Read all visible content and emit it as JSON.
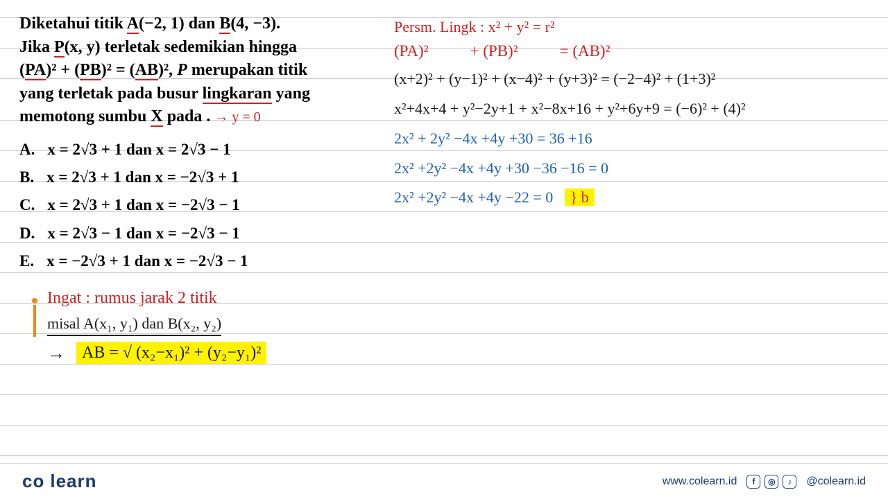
{
  "problem": {
    "l1_a": "Diketahui titik ",
    "l1_b": "A",
    "l1_c": "(−2, 1) dan ",
    "l1_d": "B",
    "l1_e": "(4, −3).",
    "l2_a": "Jika ",
    "l2_b": "P",
    "l2_c": "(x, y) terletak sedemikian hingga",
    "l3_a": "(",
    "l3_b": "PA",
    "l3_c": ")² + (",
    "l3_d": "PB",
    "l3_e": ")² = (",
    "l3_f": "AB",
    "l3_g": ")², ",
    "l3_h": "P",
    "l3_i": " merupakan titik",
    "l4": "yang terletak pada busur ",
    "l4_u": "lingkaran",
    "l4_b": " yang",
    "l5_a": "memotong sumbu ",
    "l5_b": "X",
    "l5_c": " pada . ",
    "annot": "→ y = 0"
  },
  "options": {
    "A": {
      "k": "A.",
      "t": "x = 2√3 + 1 dan x = 2√3 − 1"
    },
    "B": {
      "k": "B.",
      "t": "x = 2√3 + 1 dan x = −2√3 + 1"
    },
    "C": {
      "k": "C.",
      "t": "x = 2√3 + 1 dan x = −2√3 − 1"
    },
    "D": {
      "k": "D.",
      "t": "x = 2√3 − 1 dan x = −2√3 − 1"
    },
    "E": {
      "k": "E.",
      "t": "x = −2√3 + 1 dan x = −2√3 − 1"
    }
  },
  "work": {
    "title": "Persm. Lingk :  x² + y² = r²",
    "eq1_a": "(PA)²",
    "eq1_b": "+ (PB)²",
    "eq1_c": "= (AB)²",
    "w1": "(x+2)² + (y−1)² + (x−4)² + (y+3)² = (−2−4)² + (1+3)²",
    "w2": "x²+4x+4 + y²−2y+1 + x²−8x+16 + y²+6y+9 = (−6)² + (4)²",
    "w3": "2x² + 2y² −4x +4y  +30   = 36  +16",
    "w4": "2x²  +2y² −4x +4y +30 −36 −16 = 0",
    "w5": "2x² +2y² −4x +4y −22  = 0",
    "brace": "} b"
  },
  "remember": {
    "r1": "Ingat : rumus jarak 2 titik",
    "r2": "misal   A(x₁, y₁)  dan  B(x₂, y₂)",
    "r3": "AB = √ (x₂−x₁)² + (y₂−y₁)²",
    "arrow": "→"
  },
  "footer": {
    "logo_a": "co",
    "logo_b": "learn",
    "url": "www.colearn.id",
    "handle": "@colearn.id",
    "icons": {
      "fb": "f",
      "ig": "◎",
      "tt": "♪"
    }
  },
  "colors": {
    "red": "#d02020",
    "blue": "#1a5fb4",
    "black": "#1a1a1a",
    "highlight": "#fff200",
    "brand": "#1a3a6e",
    "orange": "#e88b1a",
    "rule": "#c8c8d0",
    "bg": "#ffffff"
  }
}
